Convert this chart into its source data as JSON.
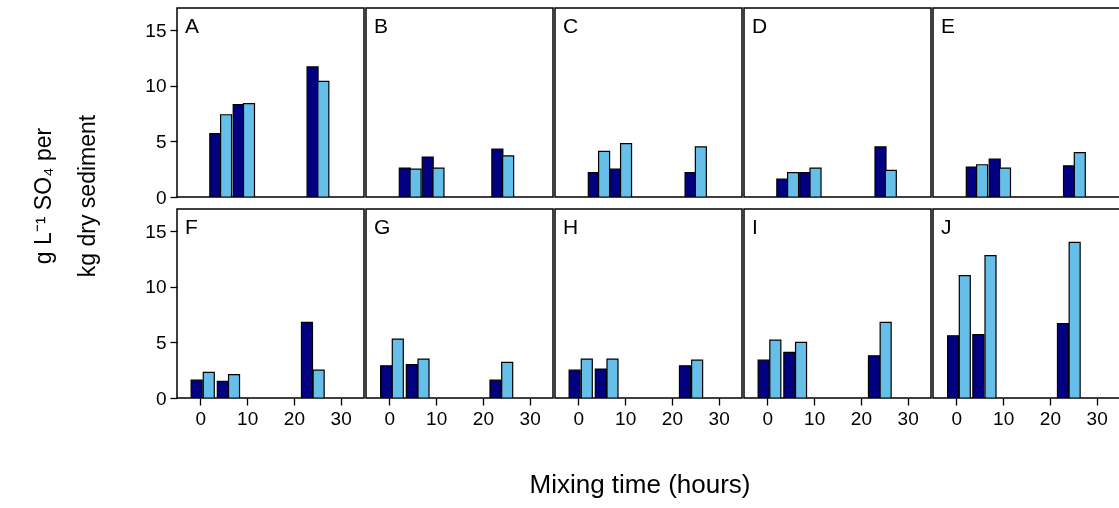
{
  "chart_data": [
    {
      "type": "bar",
      "annotations": [
        "A"
      ],
      "ylabel": "g L⁻¹ SO₄ per\nkg dry sediment",
      "xlim": [
        -5,
        35
      ],
      "xticks": [
        0,
        10,
        20,
        30
      ],
      "ylim": [
        0,
        17
      ],
      "yticks": [
        0,
        5,
        10,
        15
      ],
      "tick_labels": "y",
      "series": [
        {
          "color": "#000080",
          "x": [
            3.2,
            8.2,
            24.0
          ],
          "values": [
            5.7,
            8.3,
            11.7
          ]
        },
        {
          "color": "#66bfe8",
          "x": [
            5.5,
            10.4,
            26.3
          ],
          "values": [
            7.4,
            8.4,
            10.4
          ]
        }
      ]
    },
    {
      "type": "bar",
      "annotations": [
        "B"
      ],
      "xlim": [
        -5,
        35
      ],
      "xticks": [
        0,
        10,
        20,
        30
      ],
      "ylim": [
        0,
        17
      ],
      "yticks": [
        0,
        5,
        10,
        15
      ],
      "tick_labels": false,
      "series": [
        {
          "color": "#000080",
          "x": [
            3.3,
            8.2,
            23.1
          ],
          "values": [
            2.6,
            3.6,
            4.3
          ]
        },
        {
          "color": "#66bfe8",
          "x": [
            5.6,
            10.5,
            25.4
          ],
          "values": [
            2.5,
            2.6,
            3.7
          ]
        }
      ]
    },
    {
      "type": "bar",
      "annotations": [
        "C"
      ],
      "xlim": [
        -5,
        35
      ],
      "xticks": [
        0,
        10,
        20,
        30
      ],
      "ylim": [
        0,
        17
      ],
      "yticks": [
        0,
        5,
        10,
        15
      ],
      "tick_labels": false,
      "series": [
        {
          "color": "#000080",
          "x": [
            3.3,
            7.9,
            24.0
          ],
          "values": [
            2.2,
            2.5,
            2.2
          ]
        },
        {
          "color": "#66bfe8",
          "x": [
            5.5,
            10.2,
            26.2
          ],
          "values": [
            4.1,
            4.8,
            4.5
          ]
        }
      ]
    },
    {
      "type": "bar",
      "annotations": [
        "D"
      ],
      "xlim": [
        -5,
        35
      ],
      "xticks": [
        0,
        10,
        20,
        30
      ],
      "ylim": [
        0,
        17
      ],
      "yticks": [
        0,
        5,
        10,
        15
      ],
      "tick_labels": false,
      "series": [
        {
          "color": "#000080",
          "x": [
            3.2,
            8.1,
            24.2
          ],
          "values": [
            1.6,
            2.2,
            4.5
          ]
        },
        {
          "color": "#66bfe8",
          "x": [
            5.5,
            10.3,
            26.4
          ],
          "values": [
            2.2,
            2.6,
            2.4
          ]
        }
      ]
    },
    {
      "type": "bar",
      "annotations": [
        "E"
      ],
      "xlim": [
        -5,
        35
      ],
      "xticks": [
        0,
        10,
        20,
        30
      ],
      "ylim": [
        0,
        17
      ],
      "yticks": [
        0,
        5,
        10,
        15
      ],
      "tick_labels": false,
      "series": [
        {
          "color": "#000080",
          "x": [
            3.3,
            8.2,
            24.1
          ],
          "values": [
            2.7,
            3.4,
            2.8
          ]
        },
        {
          "color": "#66bfe8",
          "x": [
            5.5,
            10.4,
            26.4
          ],
          "values": [
            2.9,
            2.6,
            4.0
          ]
        }
      ]
    },
    {
      "type": "bar",
      "annotations": [
        "F"
      ],
      "xlim": [
        -5,
        35
      ],
      "xticks": [
        0,
        10,
        20,
        30
      ],
      "ylim": [
        0,
        17
      ],
      "yticks": [
        0,
        5,
        10,
        15
      ],
      "series": [
        {
          "color": "#000080",
          "x": [
            -0.8,
            4.8,
            22.8
          ],
          "values": [
            1.6,
            1.5,
            6.8
          ]
        },
        {
          "color": "#66bfe8",
          "x": [
            1.8,
            7.2,
            25.3
          ],
          "values": [
            2.3,
            2.1,
            2.5
          ]
        }
      ]
    },
    {
      "type": "bar",
      "annotations": [
        "G"
      ],
      "xlim": [
        -5,
        35
      ],
      "xticks": [
        0,
        10,
        20,
        30
      ],
      "ylim": [
        0,
        17
      ],
      "yticks": [
        0,
        5,
        10,
        15
      ],
      "tick_labels": "x",
      "series": [
        {
          "color": "#000080",
          "x": [
            -0.7,
            4.8,
            22.7
          ],
          "values": [
            2.9,
            3.0,
            1.6
          ]
        },
        {
          "color": "#66bfe8",
          "x": [
            1.8,
            7.3,
            25.2
          ],
          "values": [
            5.3,
            3.5,
            3.2
          ]
        }
      ]
    },
    {
      "type": "bar",
      "annotations": [
        "H"
      ],
      "xlabel": "Mixing time (hours)",
      "xlim": [
        -5,
        35
      ],
      "xticks": [
        0,
        10,
        20,
        30
      ],
      "ylim": [
        0,
        17
      ],
      "yticks": [
        0,
        5,
        10,
        15
      ],
      "tick_labels": "x",
      "series": [
        {
          "color": "#000080",
          "x": [
            -0.8,
            4.8,
            22.8
          ],
          "values": [
            2.5,
            2.6,
            2.9
          ]
        },
        {
          "color": "#66bfe8",
          "x": [
            1.8,
            7.3,
            25.4
          ],
          "values": [
            3.5,
            3.5,
            3.4
          ]
        }
      ]
    },
    {
      "type": "bar",
      "annotations": [
        "I"
      ],
      "xlim": [
        -5,
        35
      ],
      "xticks": [
        0,
        10,
        20,
        30
      ],
      "ylim": [
        0,
        17
      ],
      "yticks": [
        0,
        5,
        10,
        15
      ],
      "tick_labels": "x",
      "series": [
        {
          "color": "#000080",
          "x": [
            -0.8,
            4.7,
            22.8
          ],
          "values": [
            3.4,
            4.1,
            3.8
          ]
        },
        {
          "color": "#66bfe8",
          "x": [
            1.7,
            7.2,
            25.3
          ],
          "values": [
            5.2,
            5.0,
            6.8
          ]
        }
      ]
    },
    {
      "type": "bar",
      "annotations": [
        "J"
      ],
      "xlim": [
        -5,
        35
      ],
      "xticks": [
        0,
        10,
        20,
        30
      ],
      "ylim": [
        0,
        17
      ],
      "yticks": [
        0,
        5,
        10,
        15
      ],
      "tick_labels": "x",
      "series": [
        {
          "color": "#000080",
          "x": [
            -0.7,
            4.7,
            22.8
          ],
          "values": [
            5.6,
            5.7,
            6.7
          ]
        },
        {
          "color": "#66bfe8",
          "x": [
            1.8,
            7.3,
            25.3
          ],
          "values": [
            11.0,
            12.8,
            14.0
          ]
        }
      ]
    }
  ]
}
